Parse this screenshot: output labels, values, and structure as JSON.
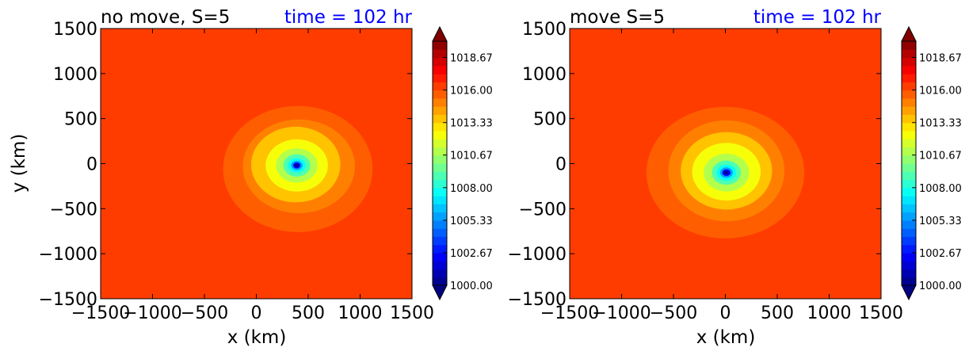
{
  "chart_data": [
    {
      "type": "heatmap",
      "title": "no move, S=5",
      "time_label": "time = 102 hr",
      "xlabel": "x (km)",
      "ylabel": "y (km)",
      "xlim": [
        -1500,
        1500
      ],
      "ylim": [
        -1500,
        1500
      ],
      "xticks": [
        "−1500",
        "−1000",
        "−500",
        "0",
        "500",
        "1000",
        "1500"
      ],
      "yticks": [
        "1500",
        "1000",
        "500",
        "0",
        "−500",
        "−1000",
        "−1500"
      ],
      "background_value": 1016.4,
      "center": {
        "x": 390,
        "y": -20
      },
      "contours": [
        {
          "level": 1015.5,
          "rx": 720,
          "ry": 700,
          "dx": 10,
          "dy": -40
        },
        {
          "level": 1014.8,
          "rx": 540,
          "ry": 520,
          "dx": 20,
          "dy": -10
        },
        {
          "level": 1013.6,
          "rx": 430,
          "ry": 420,
          "dx": -10,
          "dy": 10
        },
        {
          "level": 1012.3,
          "rx": 300,
          "ry": 290,
          "dx": 0,
          "dy": 0
        },
        {
          "level": 1010.9,
          "rx": 200,
          "ry": 190,
          "dx": 0,
          "dy": 0
        },
        {
          "level": 1009.3,
          "rx": 130,
          "ry": 125,
          "dx": 0,
          "dy": 0
        },
        {
          "level": 1007.6,
          "rx": 85,
          "ry": 80,
          "dx": 0,
          "dy": 0
        },
        {
          "level": 1005.5,
          "rx": 55,
          "ry": 52,
          "dx": 0,
          "dy": 0
        },
        {
          "level": 1002.5,
          "rx": 35,
          "ry": 33,
          "dx": 0,
          "dy": 0
        },
        {
          "level": 1000.3,
          "rx": 20,
          "ry": 18,
          "dx": 0,
          "dy": 0
        }
      ]
    },
    {
      "type": "heatmap",
      "title": "move S=5",
      "time_label": "time = 102 hr",
      "xlabel": "x (km)",
      "ylabel": "",
      "xlim": [
        -1500,
        1500
      ],
      "ylim": [
        -1500,
        1500
      ],
      "xticks": [
        "−1500",
        "−1000",
        "−500",
        "0",
        "500",
        "1000",
        "1500"
      ],
      "yticks": [
        "1500",
        "1000",
        "500",
        "0",
        "−500",
        "−1000",
        "−1500"
      ],
      "background_value": 1016.4,
      "center": {
        "x": 10,
        "y": -100
      },
      "contours": [
        {
          "level": 1015.5,
          "rx": 760,
          "ry": 730,
          "dx": -10,
          "dy": 0
        },
        {
          "level": 1014.8,
          "rx": 560,
          "ry": 560,
          "dx": 0,
          "dy": 20
        },
        {
          "level": 1013.6,
          "rx": 440,
          "ry": 430,
          "dx": 0,
          "dy": 20
        },
        {
          "level": 1012.3,
          "rx": 330,
          "ry": 320,
          "dx": 0,
          "dy": 10
        },
        {
          "level": 1010.9,
          "rx": 220,
          "ry": 210,
          "dx": 0,
          "dy": 0
        },
        {
          "level": 1009.3,
          "rx": 140,
          "ry": 135,
          "dx": 0,
          "dy": 0
        },
        {
          "level": 1007.6,
          "rx": 95,
          "ry": 90,
          "dx": 0,
          "dy": 0
        },
        {
          "level": 1005.5,
          "rx": 62,
          "ry": 58,
          "dx": 0,
          "dy": 0
        },
        {
          "level": 1002.5,
          "rx": 40,
          "ry": 37,
          "dx": 0,
          "dy": 0
        },
        {
          "level": 1000.3,
          "rx": 20,
          "ry": 18,
          "dx": 0,
          "dy": 0
        }
      ]
    }
  ],
  "colorbar": {
    "min": 1000.0,
    "max": 1020.0,
    "tick_labels": [
      "1018.67",
      "1016.00",
      "1013.33",
      "1010.67",
      "1008.00",
      "1005.33",
      "1002.67",
      "1000.00"
    ],
    "tick_values": [
      1018.67,
      1016.0,
      1013.33,
      1010.67,
      1008.0,
      1005.33,
      1002.67,
      1000.0
    ],
    "extend": "both",
    "colormap": "jet"
  },
  "colors": {
    "time_label": "#0000ff",
    "text": "#000000"
  }
}
